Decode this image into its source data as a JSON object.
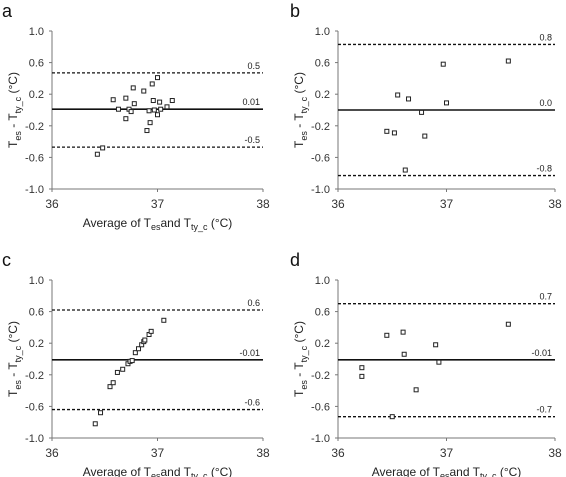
{
  "chart_data": [
    {
      "type": "scatter",
      "panel_label": "a",
      "xlabel": "Average of T",
      "xlabel_sub1": "es",
      "xlabel_mid": "and T",
      "xlabel_sub2": "ty_c",
      "xlabel_unit": " (°C)",
      "ylabel": "T",
      "ylabel_sub1": "es",
      "ylabel_mid": " - T",
      "ylabel_sub2": "ty_c",
      "ylabel_unit": " (°C)",
      "xlim": [
        36,
        38
      ],
      "ylim": [
        -1.0,
        1.0
      ],
      "x_ticks": [
        36,
        37,
        38
      ],
      "x_tick_labels": [
        "36",
        "37",
        "38"
      ],
      "y_ticks": [
        1.0,
        0.6,
        0.2,
        -0.2,
        -0.6,
        -1.0
      ],
      "y_tick_labels": [
        "1.0",
        "0.6",
        "0.2",
        "-0.2",
        "-0.6",
        "-1.0"
      ],
      "ref_lines": [
        {
          "y": 0.47,
          "label": "0.5",
          "style": "dashed"
        },
        {
          "y": 0.01,
          "label": "0.01",
          "style": "solid"
        },
        {
          "y": -0.47,
          "label": "-0.5",
          "style": "dashed"
        }
      ],
      "points": [
        {
          "x": 36.43,
          "y": -0.56
        },
        {
          "x": 36.48,
          "y": -0.48
        },
        {
          "x": 36.58,
          "y": 0.13
        },
        {
          "x": 36.63,
          "y": 0.01
        },
        {
          "x": 36.7,
          "y": 0.15
        },
        {
          "x": 36.7,
          "y": -0.11
        },
        {
          "x": 36.73,
          "y": 0.01
        },
        {
          "x": 36.75,
          "y": -0.02
        },
        {
          "x": 36.77,
          "y": 0.28
        },
        {
          "x": 36.78,
          "y": 0.08
        },
        {
          "x": 36.87,
          "y": 0.24
        },
        {
          "x": 36.9,
          "y": -0.26
        },
        {
          "x": 36.92,
          "y": -0.01
        },
        {
          "x": 36.93,
          "y": -0.16
        },
        {
          "x": 36.95,
          "y": 0.33
        },
        {
          "x": 36.96,
          "y": 0.12
        },
        {
          "x": 36.97,
          "y": 0.0
        },
        {
          "x": 37.0,
          "y": 0.41
        },
        {
          "x": 37.0,
          "y": -0.06
        },
        {
          "x": 37.02,
          "y": 0.1
        },
        {
          "x": 37.03,
          "y": 0.01
        },
        {
          "x": 37.09,
          "y": 0.04
        },
        {
          "x": 37.14,
          "y": 0.12
        }
      ]
    },
    {
      "type": "scatter",
      "panel_label": "b",
      "xlabel": "",
      "ylabel": "T",
      "ylabel_sub1": "es",
      "ylabel_mid": " - T",
      "ylabel_sub2": "ty_c",
      "ylabel_unit": " (°C)",
      "xlim": [
        36,
        38
      ],
      "ylim": [
        -1.0,
        1.0
      ],
      "x_ticks": [
        36,
        37,
        38
      ],
      "x_tick_labels": [
        "36",
        "37",
        "38"
      ],
      "y_ticks": [
        1.0,
        0.6,
        0.2,
        -0.2,
        -0.6,
        -1.0
      ],
      "y_tick_labels": [
        "1.0",
        "0.6",
        "0.2",
        "-0.2",
        "-0.6",
        "-1.0"
      ],
      "ref_lines": [
        {
          "y": 0.83,
          "label": "0.8",
          "style": "dashed"
        },
        {
          "y": 0.0,
          "label": "0.0",
          "style": "solid"
        },
        {
          "y": -0.83,
          "label": "-0.8",
          "style": "dashed"
        }
      ],
      "points": [
        {
          "x": 36.45,
          "y": -0.27
        },
        {
          "x": 36.52,
          "y": -0.29
        },
        {
          "x": 36.55,
          "y": 0.19
        },
        {
          "x": 36.62,
          "y": -0.76
        },
        {
          "x": 36.65,
          "y": 0.14
        },
        {
          "x": 36.77,
          "y": -0.03
        },
        {
          "x": 36.8,
          "y": -0.33
        },
        {
          "x": 36.97,
          "y": 0.58
        },
        {
          "x": 37.0,
          "y": 0.09
        },
        {
          "x": 37.57,
          "y": 0.62
        }
      ]
    },
    {
      "type": "scatter",
      "panel_label": "c",
      "xlabel": "Average of T",
      "xlabel_sub1": "es",
      "xlabel_mid": "and T",
      "xlabel_sub2": "ty_c",
      "xlabel_unit": " (°C)",
      "ylabel": "T",
      "ylabel_sub1": "es",
      "ylabel_mid": " - T",
      "ylabel_sub2": "ty_c",
      "ylabel_unit": " (°C)",
      "xlim": [
        36,
        38
      ],
      "ylim": [
        -1.0,
        1.0
      ],
      "x_ticks": [
        36,
        37,
        38
      ],
      "x_tick_labels": [
        "36",
        "37",
        "38"
      ],
      "y_ticks": [
        1.0,
        0.6,
        0.2,
        -0.2,
        -0.6,
        -1.0
      ],
      "y_tick_labels": [
        "1.0",
        "0.6",
        "0.2",
        "-0.2",
        "-0.6",
        "-1.0"
      ],
      "ref_lines": [
        {
          "y": 0.62,
          "label": "0.6",
          "style": "dashed"
        },
        {
          "y": -0.01,
          "label": "-0.01",
          "style": "solid"
        },
        {
          "y": -0.64,
          "label": "-0.6",
          "style": "dashed"
        }
      ],
      "points": [
        {
          "x": 36.41,
          "y": -0.82
        },
        {
          "x": 36.46,
          "y": -0.68
        },
        {
          "x": 36.55,
          "y": -0.35
        },
        {
          "x": 36.58,
          "y": -0.3
        },
        {
          "x": 36.62,
          "y": -0.17
        },
        {
          "x": 36.67,
          "y": -0.13
        },
        {
          "x": 36.72,
          "y": -0.06
        },
        {
          "x": 36.74,
          "y": -0.03
        },
        {
          "x": 36.76,
          "y": -0.02
        },
        {
          "x": 36.79,
          "y": 0.08
        },
        {
          "x": 36.82,
          "y": 0.13
        },
        {
          "x": 36.85,
          "y": 0.18
        },
        {
          "x": 36.87,
          "y": 0.22
        },
        {
          "x": 36.88,
          "y": 0.24
        },
        {
          "x": 36.92,
          "y": 0.31
        },
        {
          "x": 36.94,
          "y": 0.35
        },
        {
          "x": 37.06,
          "y": 0.49
        }
      ]
    },
    {
      "type": "scatter",
      "panel_label": "d",
      "xlabel": "Average of T",
      "xlabel_sub1": "es",
      "xlabel_mid": "and T",
      "xlabel_sub2": "ty_c",
      "xlabel_unit": " (°C)",
      "ylabel": "T",
      "ylabel_sub1": "es",
      "ylabel_mid": " - T",
      "ylabel_sub2": "ty_c",
      "ylabel_unit": " (°C)",
      "xlim": [
        36,
        38
      ],
      "ylim": [
        -1.0,
        1.0
      ],
      "x_ticks": [
        36,
        37,
        38
      ],
      "x_tick_labels": [
        "36",
        "37",
        "38"
      ],
      "y_ticks": [
        1.0,
        0.6,
        0.2,
        -0.2,
        -0.6,
        -1.0
      ],
      "y_tick_labels": [
        "1.0",
        "0.6",
        "0.2",
        "-0.2",
        "-0.6",
        "-1.0"
      ],
      "ref_lines": [
        {
          "y": 0.7,
          "label": "0.7",
          "style": "dashed"
        },
        {
          "y": -0.01,
          "label": "-0.01",
          "style": "solid"
        },
        {
          "y": -0.73,
          "label": "-0.7",
          "style": "dashed"
        }
      ],
      "points": [
        {
          "x": 36.22,
          "y": -0.11
        },
        {
          "x": 36.22,
          "y": -0.22
        },
        {
          "x": 36.45,
          "y": 0.3
        },
        {
          "x": 36.5,
          "y": -0.73
        },
        {
          "x": 36.6,
          "y": 0.34
        },
        {
          "x": 36.61,
          "y": 0.06
        },
        {
          "x": 36.72,
          "y": -0.39
        },
        {
          "x": 36.9,
          "y": 0.18
        },
        {
          "x": 36.93,
          "y": -0.04
        },
        {
          "x": 37.57,
          "y": 0.44
        }
      ]
    }
  ]
}
